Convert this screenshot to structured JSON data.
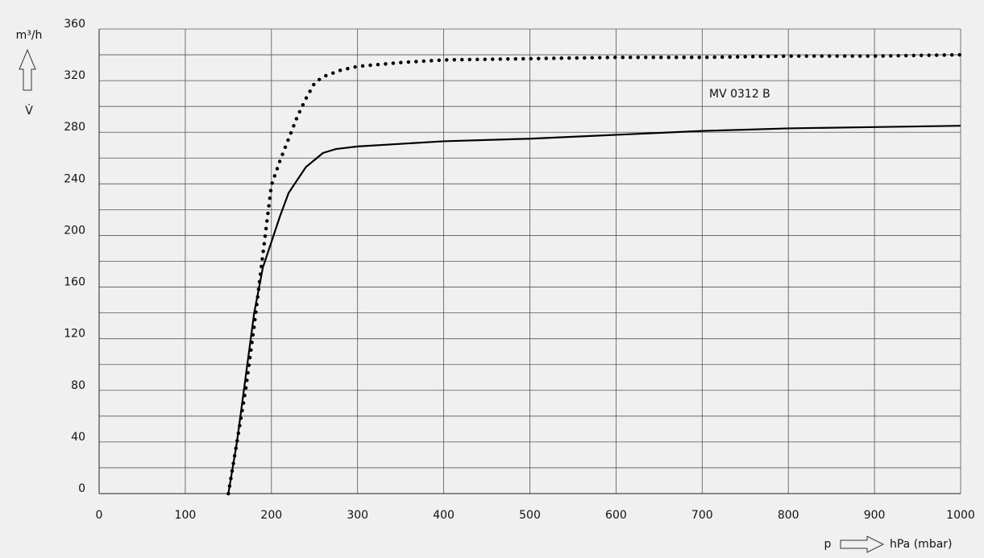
{
  "chart_data": {
    "type": "line",
    "y_unit_label": "m³/h",
    "y_label": "V̇",
    "x_label": "p",
    "x_unit_label": "hPa (mbar)",
    "annotation": "MV 0312 B",
    "xlim": [
      0,
      1000
    ],
    "xticks": [
      0,
      100,
      200,
      300,
      400,
      500,
      600,
      700,
      800,
      900,
      1000
    ],
    "ylim": [
      0,
      360
    ],
    "yticks": [
      0,
      40,
      80,
      120,
      160,
      200,
      240,
      280,
      320,
      360
    ],
    "ygrid": [
      0,
      20,
      40,
      60,
      80,
      100,
      120,
      140,
      160,
      180,
      200,
      220,
      240,
      260,
      280,
      300,
      320,
      340,
      360
    ],
    "grid": true,
    "series": [
      {
        "style": "dotted",
        "color": "#000000",
        "x": [
          150,
          160,
          170,
          180,
          190,
          200,
          210,
          220,
          230,
          240,
          250,
          260,
          280,
          300,
          350,
          400,
          500,
          600,
          700,
          800,
          900,
          1000
        ],
        "values": [
          0,
          40,
          80,
          130,
          185,
          239,
          258,
          275,
          292,
          306,
          318,
          323,
          328,
          331,
          334,
          336,
          337,
          338,
          338,
          339,
          339,
          340
        ]
      },
      {
        "style": "solid",
        "color": "#000000",
        "x": [
          150,
          160,
          170,
          180,
          190,
          200,
          210,
          220,
          240,
          260,
          275,
          300,
          400,
          500,
          600,
          700,
          800,
          900,
          1000
        ],
        "values": [
          0,
          40,
          90,
          140,
          175,
          195,
          215,
          233,
          253,
          264,
          267,
          269,
          273,
          275,
          278,
          281,
          283,
          284,
          285
        ]
      }
    ]
  }
}
